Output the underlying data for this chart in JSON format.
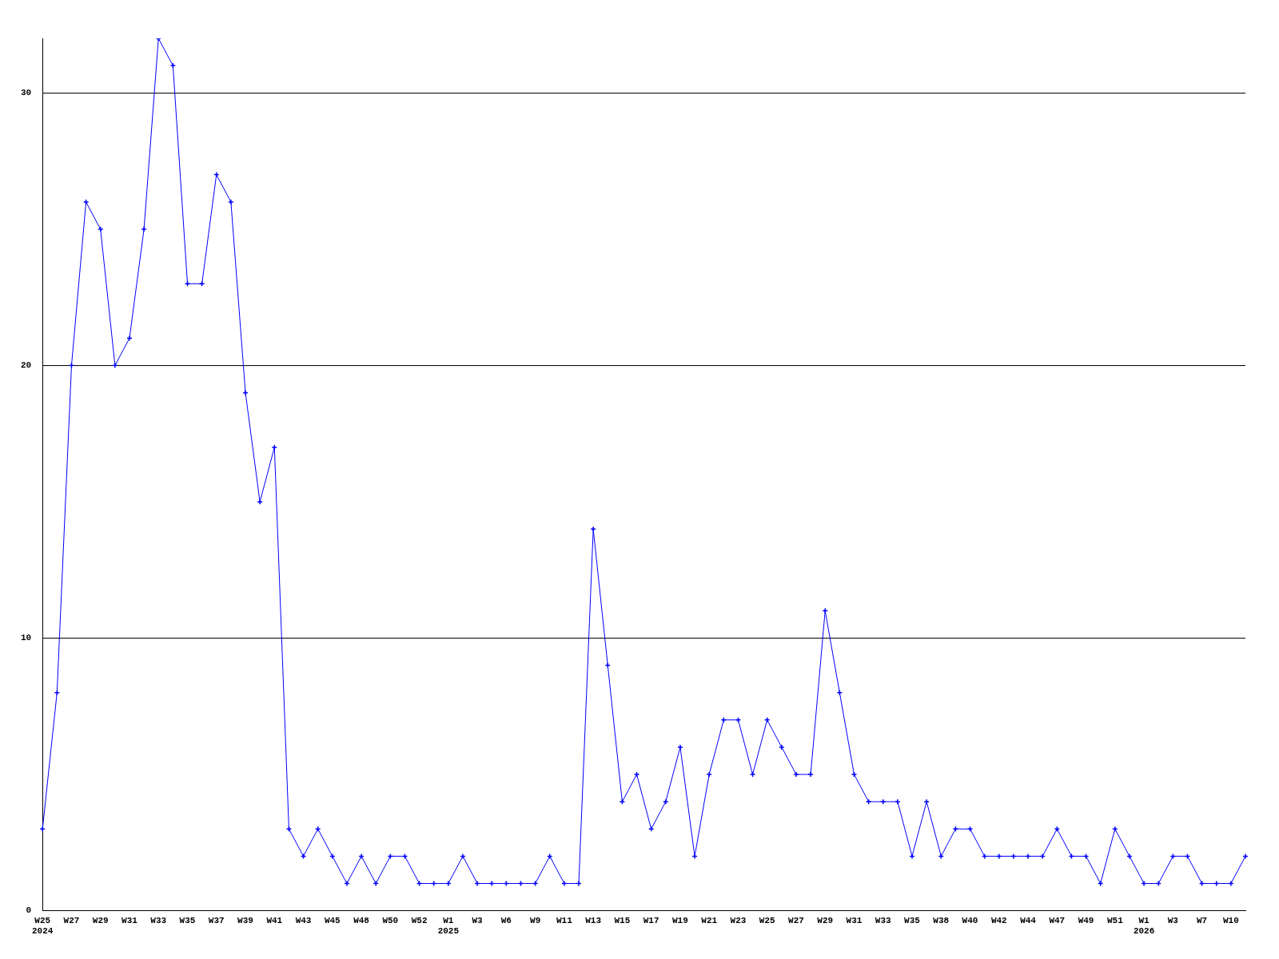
{
  "chart_data": {
    "type": "line",
    "categories": [
      "W25\n2024",
      null,
      "W27",
      null,
      "W29",
      null,
      "W31",
      null,
      "W33",
      null,
      "W35",
      null,
      "W37",
      null,
      "W39",
      null,
      "W41",
      null,
      "W43",
      null,
      "W45",
      null,
      "W48",
      null,
      "W50",
      null,
      "W52",
      null,
      "W1\n2025",
      null,
      "W3",
      null,
      "W6",
      null,
      "W9",
      null,
      "W11",
      null,
      "W13",
      null,
      "W15",
      null,
      "W17",
      null,
      "W19",
      null,
      "W21",
      null,
      "W23",
      null,
      "W25",
      null,
      "W27",
      null,
      "W29",
      null,
      "W31",
      null,
      "W33",
      null,
      "W35",
      null,
      "W38",
      null,
      "W40",
      null,
      "W42",
      null,
      "W44",
      null,
      "W47",
      null,
      "W49",
      null,
      "W51",
      null,
      "W1\n2026",
      null,
      "W3",
      null,
      "W7",
      null,
      "W10",
      null
    ],
    "series": [
      {
        "color": "#0000ff",
        "values": [
          3,
          8,
          20,
          26,
          25,
          20,
          21,
          25,
          32,
          31,
          23,
          23,
          27,
          26,
          19,
          15,
          17,
          3,
          2,
          3,
          2,
          1,
          2,
          1,
          2,
          2,
          1,
          1,
          1,
          2,
          1,
          1,
          1,
          1,
          1,
          2,
          1,
          1,
          14,
          9,
          4,
          5,
          3,
          4,
          6,
          2,
          5,
          7,
          7,
          5,
          7,
          6,
          5,
          5,
          11,
          8,
          5,
          4,
          4,
          4,
          2,
          4,
          2,
          3,
          3,
          2,
          2,
          2,
          2,
          2,
          3,
          2,
          2,
          1,
          3,
          2,
          1,
          1,
          2,
          2,
          1,
          1,
          1,
          2
        ]
      }
    ],
    "ylim": [
      0,
      32
    ],
    "yticks": [
      0,
      10,
      20,
      30
    ],
    "grid": "y",
    "legend": false,
    "marker": "cross",
    "line_style": "solid"
  }
}
